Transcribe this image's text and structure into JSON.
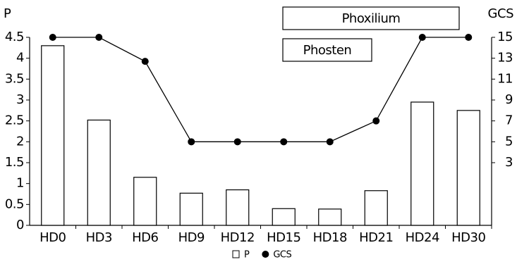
{
  "chart_data": {
    "type": "bar",
    "y_label": "P",
    "y2_label": "GCS",
    "annotations": [
      "Phoxilium",
      "Phosten"
    ],
    "categories": [
      "HD0",
      "HD3",
      "HD6",
      "HD9",
      "HD12",
      "HD15",
      "HD18",
      "HD21",
      "HD24",
      "HD30"
    ],
    "series": [
      {
        "name": "P",
        "type": "bar",
        "color": "#ffffff",
        "values": [
          4.3,
          2.52,
          1.15,
          0.77,
          0.85,
          0.4,
          0.39,
          0.83,
          2.95,
          2.75
        ]
      },
      {
        "name": "GCS",
        "type": "line",
        "axis": "y2",
        "color": "#000000",
        "values": [
          15,
          15,
          12.7,
          5,
          5,
          5,
          5,
          7,
          15,
          15
        ]
      }
    ],
    "ylim": [
      0,
      4.5
    ],
    "yticks": [
      0,
      0.5,
      1,
      1.5,
      2,
      2.5,
      3,
      3.5,
      4,
      4.5
    ],
    "y2lim": [
      -3,
      15
    ],
    "y2ticks": [
      3,
      5,
      7,
      9,
      11,
      13,
      15
    ],
    "grid": false
  }
}
